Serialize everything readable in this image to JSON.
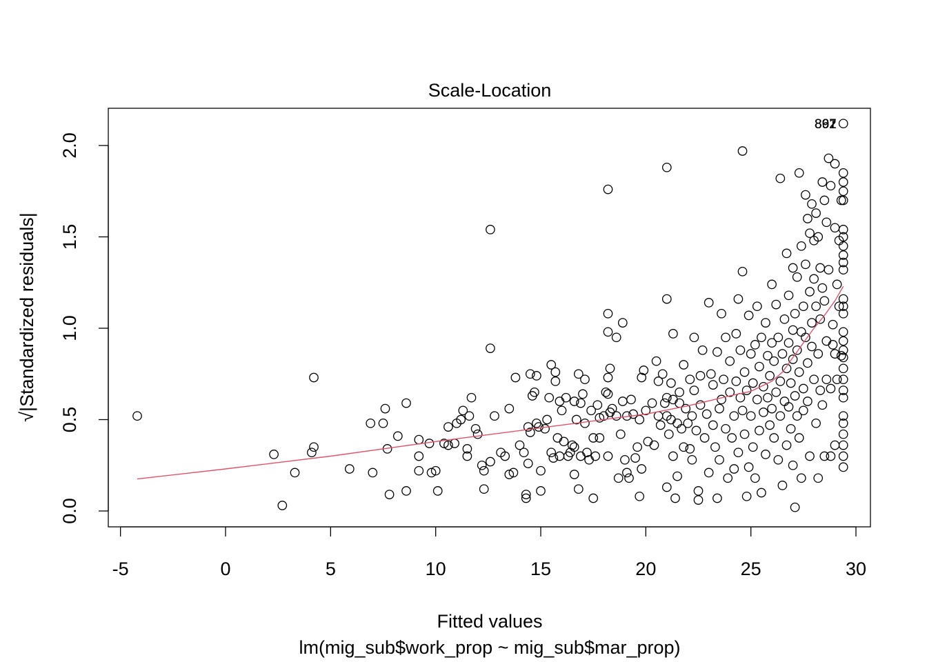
{
  "chart_data": {
    "type": "scatter",
    "title": "Scale-Location",
    "xlabel": "Fitted values",
    "subtitle": "lm(mig_sub$work_prop ~ mig_sub$mar_prop)",
    "ylabel": "Standardized residuals",
    "ylabel_prefix": "√|",
    "ylabel_suffix": "|",
    "xlim": [
      -5,
      30
    ],
    "ylim": [
      0,
      2
    ],
    "x_ticks": [
      -5,
      0,
      5,
      10,
      15,
      20,
      25,
      30
    ],
    "x_tick_labels": [
      "-5",
      "0",
      "5",
      "10",
      "15",
      "20",
      "25",
      "30"
    ],
    "y_ticks": [
      0,
      0.5,
      1,
      1.5,
      2
    ],
    "y_tick_labels": [
      "0.0",
      "0.5",
      "1.0",
      "1.5",
      "2.0"
    ],
    "grid": false,
    "point_marker": "open-circle",
    "outlier_labels": [
      {
        "text": "892",
        "x": 29.4,
        "y": 2.12
      },
      {
        "text": "897",
        "x": 29.4,
        "y": 2.12
      },
      {
        "text": "861",
        "x": 29.4,
        "y": 2.12
      }
    ],
    "points": [
      [
        -4.2,
        0.52
      ],
      [
        2.3,
        0.31
      ],
      [
        2.7,
        0.03
      ],
      [
        3.3,
        0.21
      ],
      [
        4.2,
        0.73
      ],
      [
        4.1,
        0.32
      ],
      [
        4.2,
        0.35
      ],
      [
        5.9,
        0.23
      ],
      [
        6.9,
        0.48
      ],
      [
        7.0,
        0.21
      ],
      [
        7.5,
        0.48
      ],
      [
        7.6,
        0.56
      ],
      [
        7.7,
        0.34
      ],
      [
        7.8,
        0.09
      ],
      [
        8.2,
        0.41
      ],
      [
        8.6,
        0.59
      ],
      [
        8.6,
        0.11
      ],
      [
        9.2,
        0.39
      ],
      [
        9.2,
        0.3
      ],
      [
        9.2,
        0.22
      ],
      [
        9.7,
        0.37
      ],
      [
        9.8,
        0.21
      ],
      [
        10.0,
        0.22
      ],
      [
        10.1,
        0.11
      ],
      [
        10.4,
        0.37
      ],
      [
        10.6,
        0.36
      ],
      [
        10.6,
        0.46
      ],
      [
        10.9,
        0.37
      ],
      [
        11.0,
        0.48
      ],
      [
        11.2,
        0.5
      ],
      [
        11.3,
        0.55
      ],
      [
        11.5,
        0.34
      ],
      [
        11.5,
        0.3
      ],
      [
        11.6,
        0.52
      ],
      [
        11.7,
        0.62
      ],
      [
        11.9,
        0.45
      ],
      [
        12.0,
        0.42
      ],
      [
        12.2,
        0.25
      ],
      [
        12.3,
        0.22
      ],
      [
        12.3,
        0.12
      ],
      [
        12.6,
        1.54
      ],
      [
        12.6,
        0.89
      ],
      [
        12.6,
        0.27
      ],
      [
        12.8,
        0.52
      ],
      [
        13.1,
        0.32
      ],
      [
        13.3,
        0.3
      ],
      [
        13.5,
        0.2
      ],
      [
        13.5,
        0.56
      ],
      [
        13.7,
        0.21
      ],
      [
        13.8,
        0.73
      ],
      [
        14.0,
        0.36
      ],
      [
        14.2,
        0.32
      ],
      [
        14.3,
        0.09
      ],
      [
        14.3,
        0.07
      ],
      [
        14.4,
        0.26
      ],
      [
        14.4,
        0.46
      ],
      [
        14.5,
        0.75
      ],
      [
        14.5,
        0.43
      ],
      [
        14.6,
        0.63
      ],
      [
        14.7,
        0.65
      ],
      [
        14.8,
        0.74
      ],
      [
        14.8,
        0.48
      ],
      [
        14.9,
        0.46
      ],
      [
        15.0,
        0.22
      ],
      [
        15.0,
        0.11
      ],
      [
        15.2,
        0.45
      ],
      [
        15.3,
        0.5
      ],
      [
        15.4,
        0.62
      ],
      [
        15.5,
        0.8
      ],
      [
        15.5,
        0.32
      ],
      [
        15.6,
        0.29
      ],
      [
        15.7,
        0.71
      ],
      [
        15.7,
        0.76
      ],
      [
        15.8,
        0.4
      ],
      [
        15.9,
        0.6
      ],
      [
        15.9,
        0.3
      ],
      [
        16.0,
        0.55
      ],
      [
        16.1,
        0.38
      ],
      [
        16.2,
        0.62
      ],
      [
        16.3,
        0.3
      ],
      [
        16.4,
        0.32
      ],
      [
        16.5,
        0.36
      ],
      [
        16.6,
        0.6
      ],
      [
        16.6,
        0.35
      ],
      [
        16.6,
        0.2
      ],
      [
        16.7,
        0.5
      ],
      [
        16.8,
        0.75
      ],
      [
        16.8,
        0.12
      ],
      [
        16.9,
        0.3
      ],
      [
        16.9,
        0.59
      ],
      [
        17.0,
        0.64
      ],
      [
        17.1,
        0.72
      ],
      [
        17.1,
        0.48
      ],
      [
        17.2,
        0.32
      ],
      [
        17.3,
        0.28
      ],
      [
        17.4,
        0.55
      ],
      [
        17.5,
        0.4
      ],
      [
        17.5,
        0.07
      ],
      [
        17.6,
        0.3
      ],
      [
        17.7,
        0.58
      ],
      [
        17.8,
        0.51
      ],
      [
        17.8,
        0.4
      ],
      [
        18.0,
        0.52
      ],
      [
        18.1,
        0.65
      ],
      [
        18.2,
        1.76
      ],
      [
        18.2,
        1.08
      ],
      [
        18.2,
        0.98
      ],
      [
        18.2,
        0.73
      ],
      [
        18.2,
        0.64
      ],
      [
        18.2,
        0.3
      ],
      [
        18.3,
        0.78
      ],
      [
        18.3,
        0.54
      ],
      [
        18.4,
        0.56
      ],
      [
        18.6,
        0.52
      ],
      [
        18.6,
        0.95
      ],
      [
        18.7,
        0.18
      ],
      [
        18.8,
        0.42
      ],
      [
        18.9,
        1.03
      ],
      [
        18.9,
        0.6
      ],
      [
        19.0,
        0.28
      ],
      [
        19.1,
        0.52
      ],
      [
        19.1,
        0.21
      ],
      [
        19.2,
        0.18
      ],
      [
        19.3,
        0.61
      ],
      [
        19.4,
        0.53
      ],
      [
        19.5,
        0.29
      ],
      [
        19.6,
        0.35
      ],
      [
        19.7,
        0.5
      ],
      [
        19.7,
        0.08
      ],
      [
        19.8,
        0.23
      ],
      [
        19.8,
        0.73
      ],
      [
        19.9,
        0.77
      ],
      [
        20.0,
        0.55
      ],
      [
        20.1,
        0.38
      ],
      [
        20.3,
        0.59
      ],
      [
        20.4,
        0.36
      ],
      [
        20.5,
        0.82
      ],
      [
        20.6,
        0.71
      ],
      [
        20.6,
        0.52
      ],
      [
        20.7,
        0.47
      ],
      [
        20.8,
        0.75
      ],
      [
        20.9,
        0.59
      ],
      [
        21.0,
        1.88
      ],
      [
        21.0,
        1.16
      ],
      [
        21.0,
        0.62
      ],
      [
        21.0,
        0.52
      ],
      [
        21.0,
        0.13
      ],
      [
        21.1,
        0.42
      ],
      [
        21.2,
        0.5
      ],
      [
        21.2,
        0.7
      ],
      [
        21.3,
        0.97
      ],
      [
        21.3,
        0.61
      ],
      [
        21.3,
        0.3
      ],
      [
        21.4,
        0.07
      ],
      [
        21.5,
        0.48
      ],
      [
        21.5,
        0.19
      ],
      [
        21.6,
        0.65
      ],
      [
        21.6,
        0.59
      ],
      [
        21.7,
        0.45
      ],
      [
        21.8,
        0.35
      ],
      [
        21.8,
        0.8
      ],
      [
        21.9,
        0.56
      ],
      [
        22.0,
        0.48
      ],
      [
        22.1,
        0.72
      ],
      [
        22.1,
        0.34
      ],
      [
        22.2,
        0.52
      ],
      [
        22.2,
        0.28
      ],
      [
        22.3,
        0.66
      ],
      [
        22.3,
        0.95
      ],
      [
        22.4,
        0.44
      ],
      [
        22.5,
        0.11
      ],
      [
        22.5,
        0.06
      ],
      [
        22.6,
        0.58
      ],
      [
        22.6,
        0.74
      ],
      [
        22.7,
        0.88
      ],
      [
        22.8,
        0.4
      ],
      [
        22.9,
        0.53
      ],
      [
        23.0,
        1.14
      ],
      [
        23.0,
        0.21
      ],
      [
        23.1,
        0.75
      ],
      [
        23.2,
        0.69
      ],
      [
        23.2,
        0.47
      ],
      [
        23.3,
        0.35
      ],
      [
        23.4,
        0.87
      ],
      [
        23.4,
        0.07
      ],
      [
        23.5,
        0.56
      ],
      [
        23.5,
        0.28
      ],
      [
        23.6,
        1.08
      ],
      [
        23.6,
        0.61
      ],
      [
        23.7,
        0.72
      ],
      [
        23.8,
        0.95
      ],
      [
        23.8,
        0.45
      ],
      [
        23.9,
        0.18
      ],
      [
        24.0,
        0.65
      ],
      [
        24.0,
        0.82
      ],
      [
        24.1,
        0.4
      ],
      [
        24.2,
        0.52
      ],
      [
        24.2,
        0.23
      ],
      [
        24.3,
        0.97
      ],
      [
        24.3,
        0.71
      ],
      [
        24.4,
        1.16
      ],
      [
        24.4,
        0.32
      ],
      [
        24.5,
        0.62
      ],
      [
        24.5,
        0.88
      ],
      [
        24.6,
        0.55
      ],
      [
        24.6,
        1.97
      ],
      [
        24.6,
        1.31
      ],
      [
        24.7,
        0.42
      ],
      [
        24.7,
        0.76
      ],
      [
        24.8,
        0.66
      ],
      [
        24.8,
        0.08
      ],
      [
        24.9,
        1.07
      ],
      [
        24.9,
        0.24
      ],
      [
        25.0,
        0.86
      ],
      [
        25.0,
        0.52
      ],
      [
        25.1,
        0.35
      ],
      [
        25.1,
        0.7
      ],
      [
        25.2,
        0.91
      ],
      [
        25.2,
        0.18
      ],
      [
        25.3,
        1.12
      ],
      [
        25.3,
        0.61
      ],
      [
        25.4,
        0.44
      ],
      [
        25.4,
        0.79
      ],
      [
        25.5,
        0.95
      ],
      [
        25.5,
        0.1
      ],
      [
        25.6,
        0.54
      ],
      [
        25.6,
        0.68
      ],
      [
        25.7,
        1.03
      ],
      [
        25.7,
        0.31
      ],
      [
        25.8,
        0.85
      ],
      [
        25.8,
        0.62
      ],
      [
        25.9,
        0.47
      ],
      [
        25.9,
        0.74
      ],
      [
        26.0,
        1.24
      ],
      [
        26.0,
        0.92
      ],
      [
        26.0,
        0.56
      ],
      [
        26.1,
        0.4
      ],
      [
        26.1,
        0.82
      ],
      [
        26.2,
        1.13
      ],
      [
        26.2,
        0.65
      ],
      [
        26.3,
        0.28
      ],
      [
        26.3,
        0.95
      ],
      [
        26.4,
        0.71
      ],
      [
        26.4,
        0.52
      ],
      [
        26.4,
        1.82
      ],
      [
        26.5,
        0.86
      ],
      [
        26.5,
        0.14
      ],
      [
        26.6,
        1.05
      ],
      [
        26.6,
        0.6
      ],
      [
        26.7,
        0.78
      ],
      [
        26.7,
        1.41
      ],
      [
        26.7,
        0.36
      ],
      [
        26.8,
        0.92
      ],
      [
        26.8,
        0.57
      ],
      [
        26.8,
        1.18
      ],
      [
        26.9,
        0.7
      ],
      [
        26.9,
        0.45
      ],
      [
        27.0,
        0.99
      ],
      [
        27.0,
        1.33
      ],
      [
        27.0,
        0.25
      ],
      [
        27.0,
        0.83
      ],
      [
        27.1,
        0.63
      ],
      [
        27.1,
        1.08
      ],
      [
        27.1,
        0.02
      ],
      [
        27.2,
        0.88
      ],
      [
        27.2,
        0.52
      ],
      [
        27.2,
        1.28
      ],
      [
        27.3,
        1.85
      ],
      [
        27.3,
        0.76
      ],
      [
        27.3,
        0.4
      ],
      [
        27.4,
        1.45
      ],
      [
        27.4,
        0.98
      ],
      [
        27.4,
        0.18
      ],
      [
        27.5,
        1.12
      ],
      [
        27.5,
        0.67
      ],
      [
        27.5,
        0.55
      ],
      [
        27.6,
        1.73
      ],
      [
        27.6,
        1.35
      ],
      [
        27.6,
        0.95
      ],
      [
        27.7,
        0.81
      ],
      [
        27.7,
        1.6
      ],
      [
        27.7,
        0.6
      ],
      [
        27.8,
        1.52
      ],
      [
        27.8,
        1.2
      ],
      [
        27.8,
        0.3
      ],
      [
        27.9,
        1.68
      ],
      [
        27.9,
        0.9
      ],
      [
        27.9,
        1.03
      ],
      [
        28.0,
        1.48
      ],
      [
        28.0,
        1.27
      ],
      [
        28.0,
        0.72
      ],
      [
        28.1,
        1.63
      ],
      [
        28.1,
        1.12
      ],
      [
        28.1,
        0.48
      ],
      [
        28.2,
        1.5
      ],
      [
        28.2,
        0.86
      ],
      [
        28.2,
        0.18
      ],
      [
        28.3,
        1.33
      ],
      [
        28.3,
        1.05
      ],
      [
        28.3,
        0.66
      ],
      [
        28.4,
        1.8
      ],
      [
        28.4,
        1.22
      ],
      [
        28.4,
        0.58
      ],
      [
        28.5,
        1.7
      ],
      [
        28.5,
        1.15
      ],
      [
        28.5,
        0.3
      ],
      [
        28.6,
        1.58
      ],
      [
        28.6,
        0.93
      ],
      [
        28.6,
        0.72
      ],
      [
        28.7,
        1.93
      ],
      [
        28.7,
        1.32
      ],
      [
        28.8,
        0.67
      ],
      [
        28.8,
        1.78
      ],
      [
        28.8,
        0.3
      ],
      [
        28.9,
        1.02
      ],
      [
        28.9,
        0.91
      ],
      [
        29.0,
        1.9
      ],
      [
        29.0,
        1.55
      ],
      [
        29.0,
        0.86
      ],
      [
        29.0,
        0.36
      ],
      [
        29.1,
        1.24
      ],
      [
        29.1,
        0.72
      ],
      [
        29.2,
        1.48
      ],
      [
        29.2,
        1.12
      ],
      [
        29.3,
        1.7
      ],
      [
        29.3,
        0.85
      ],
      [
        29.4,
        2.12
      ],
      [
        29.4,
        1.85
      ],
      [
        29.4,
        1.8
      ],
      [
        29.4,
        1.75
      ],
      [
        29.4,
        1.7
      ],
      [
        29.4,
        1.54
      ],
      [
        29.4,
        1.5
      ],
      [
        29.4,
        1.45
      ],
      [
        29.4,
        1.4
      ],
      [
        29.4,
        1.36
      ],
      [
        29.4,
        1.32
      ],
      [
        29.4,
        1.16
      ],
      [
        29.4,
        1.12
      ],
      [
        29.4,
        1.08
      ],
      [
        29.4,
        0.98
      ],
      [
        29.4,
        0.93
      ],
      [
        29.4,
        0.88
      ],
      [
        29.4,
        0.84
      ],
      [
        29.4,
        0.78
      ],
      [
        29.4,
        0.72
      ],
      [
        29.4,
        0.66
      ],
      [
        29.4,
        0.62
      ],
      [
        29.4,
        0.52
      ],
      [
        29.4,
        0.48
      ],
      [
        29.4,
        0.42
      ],
      [
        29.4,
        0.36
      ],
      [
        29.4,
        0.3
      ],
      [
        29.4,
        0.24
      ]
    ],
    "smooth_line": [
      [
        -4.2,
        0.175
      ],
      [
        0,
        0.23
      ],
      [
        5,
        0.3
      ],
      [
        10,
        0.38
      ],
      [
        15,
        0.455
      ],
      [
        20,
        0.53
      ],
      [
        22,
        0.575
      ],
      [
        24,
        0.63
      ],
      [
        25,
        0.655
      ],
      [
        26,
        0.71
      ],
      [
        26.5,
        0.76
      ],
      [
        27,
        0.84
      ],
      [
        27.5,
        0.92
      ],
      [
        28,
        1.0
      ],
      [
        28.5,
        1.07
      ],
      [
        29,
        1.15
      ],
      [
        29.4,
        1.23
      ]
    ]
  }
}
